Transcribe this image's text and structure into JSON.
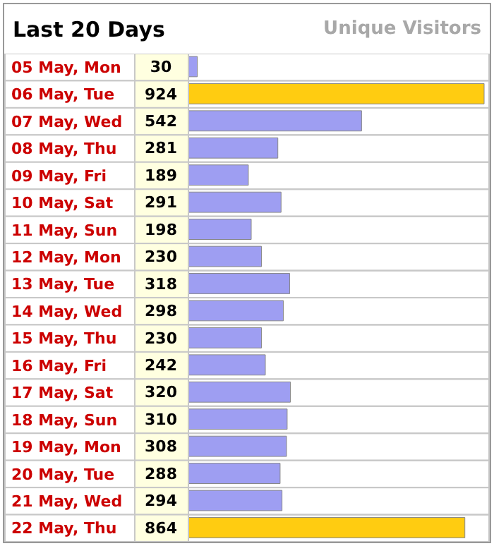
{
  "chart_data": {
    "type": "bar",
    "orientation": "horizontal",
    "title": "Last 20 Days",
    "subtitle": "Unique Visitors",
    "categories": [
      "05 May, Mon",
      "06 May, Tue",
      "07 May, Wed",
      "08 May, Thu",
      "09 May, Fri",
      "10 May, Sat",
      "11 May, Sun",
      "12 May, Mon",
      "13 May, Tue",
      "14 May, Wed",
      "15 May, Thu",
      "16 May, Fri",
      "17 May, Sat",
      "18 May, Sun",
      "19 May, Mon",
      "20 May, Tue",
      "21 May, Wed",
      "22 May, Thu"
    ],
    "values": [
      30,
      924,
      542,
      281,
      189,
      291,
      198,
      230,
      318,
      298,
      230,
      242,
      320,
      310,
      308,
      288,
      294,
      864
    ],
    "colors": [
      "#9e9ef2",
      "#ffcc11",
      "#9e9ef2",
      "#9e9ef2",
      "#9e9ef2",
      "#9e9ef2",
      "#9e9ef2",
      "#9e9ef2",
      "#9e9ef2",
      "#9e9ef2",
      "#9e9ef2",
      "#9e9ef2",
      "#9e9ef2",
      "#9e9ef2",
      "#9e9ef2",
      "#9e9ef2",
      "#9e9ef2",
      "#ffcc11"
    ],
    "data_labels": true
  }
}
